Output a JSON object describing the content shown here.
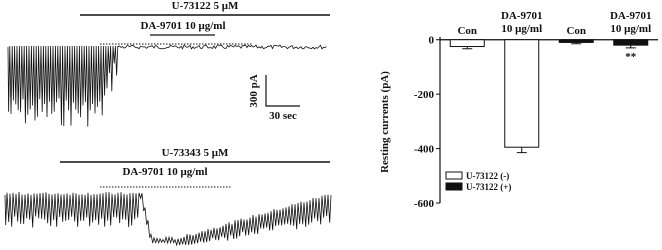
{
  "traces": {
    "top": {
      "drug_label": "U-73122 5 μM",
      "treatment_label": "DA-9701 10 μg/ml"
    },
    "scale_bar": {
      "current": "300 pA",
      "time": "30 sec"
    },
    "bottom": {
      "drug_label": "U-73343 5 μM",
      "treatment_label": "DA-9701 10 μg/ml"
    }
  },
  "chart_data": {
    "type": "bar",
    "ylabel": "Resting currents (pA)",
    "categories": [
      [
        "Con"
      ],
      [
        "DA-9701",
        "10 μg/ml"
      ],
      [
        "Con"
      ],
      [
        "DA-9701",
        "10 μg/ml"
      ]
    ],
    "series": [
      {
        "name": "U-73122 (-)",
        "color": "#ffffff",
        "values": [
          -25,
          -395,
          null,
          null
        ],
        "errors": [
          8,
          20,
          null,
          null
        ]
      },
      {
        "name": "U-73122 (+)",
        "color": "#111111",
        "values": [
          null,
          null,
          -10,
          -20
        ],
        "errors": [
          null,
          null,
          5,
          10
        ]
      }
    ],
    "annotations": [
      {
        "category": 3,
        "text": "**"
      }
    ],
    "ylim": [
      -600,
      10
    ],
    "yticks": [
      0,
      -200,
      -400,
      -600
    ],
    "legend": "lower-left"
  }
}
